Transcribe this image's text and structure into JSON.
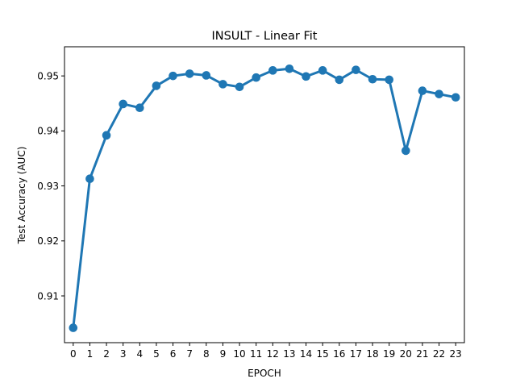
{
  "chart_data": {
    "type": "line",
    "title": "INSULT - Linear Fit",
    "xlabel": "EPOCH",
    "ylabel": "Test Accuracy (AUC)",
    "categories": [
      "0",
      "1",
      "2",
      "3",
      "4",
      "5",
      "6",
      "7",
      "8",
      "9",
      "10",
      "11",
      "12",
      "13",
      "14",
      "15",
      "16",
      "17",
      "18",
      "19",
      "20",
      "21",
      "22",
      "23"
    ],
    "series": [
      {
        "values": [
          0.9042,
          0.9313,
          0.9392,
          0.9449,
          0.9442,
          0.9482,
          0.95,
          0.9504,
          0.9501,
          0.9485,
          0.948,
          0.9497,
          0.951,
          0.9513,
          0.9499,
          0.951,
          0.9493,
          0.9511,
          0.9494,
          0.9493,
          0.9364,
          0.9473,
          0.9467,
          0.9461
        ],
        "color": "#1f77b4"
      }
    ],
    "ylim": [
      0.9015,
      0.9553
    ],
    "yticks": [
      0.91,
      0.92,
      0.93,
      0.94,
      0.95
    ],
    "ytick_labels": [
      "0.91",
      "0.92",
      "0.93",
      "0.94",
      "0.95"
    ],
    "grid": false,
    "legend": "none"
  }
}
